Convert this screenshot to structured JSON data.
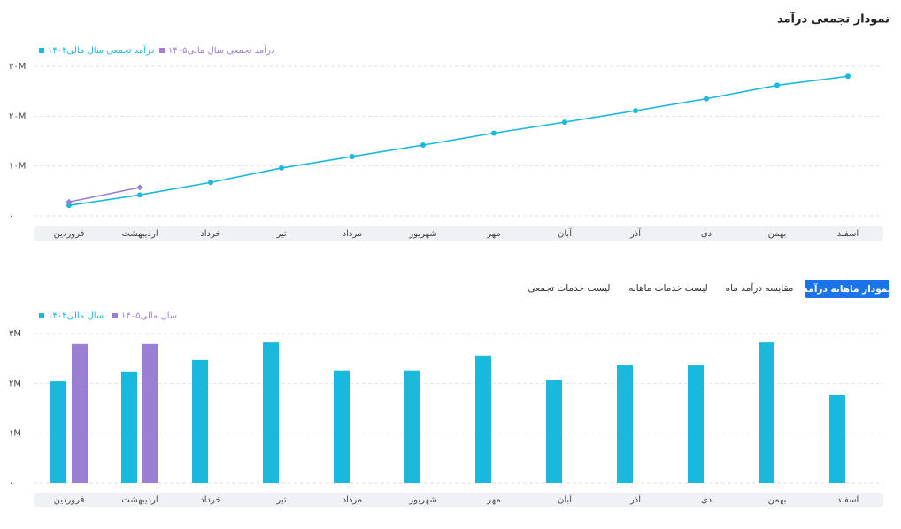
{
  "chart_data": [
    {
      "type": "line",
      "title": "نمودار تجمعی درآمد",
      "categories": [
        "فروردین",
        "اردیبهشت",
        "خرداد",
        "تیر",
        "مرداد",
        "شهریور",
        "مهر",
        "آبان",
        "آذر",
        "دی",
        "بهمن",
        "اسفند"
      ],
      "series": [
        {
          "name": "درآمد تجمعی سال مالی۱۴۰۴",
          "color": "#1ab8dc",
          "values": [
            2.1,
            4.2,
            6.7,
            9.6,
            11.9,
            14.2,
            16.6,
            18.8,
            21.1,
            23.5,
            26.2,
            28.0
          ]
        },
        {
          "name": "درآمد تجمعی سال مالی۱۴۰۵",
          "color": "#9b7fd4",
          "values": [
            2.8,
            5.7,
            null,
            null,
            null,
            null,
            null,
            null,
            null,
            null,
            null,
            null
          ]
        }
      ],
      "ylim": [
        0,
        30
      ],
      "yticks": [
        {
          "value": 0,
          "label": "۰"
        },
        {
          "value": 10,
          "label": "۱۰M"
        },
        {
          "value": 20,
          "label": "۲۰M"
        },
        {
          "value": 30,
          "label": "۳۰M"
        }
      ],
      "grid": true
    },
    {
      "type": "bar",
      "categories": [
        "فروردین",
        "اردیبهشت",
        "خرداد",
        "تیر",
        "مرداد",
        "شهریور",
        "مهر",
        "آبان",
        "آذر",
        "دی",
        "بهمن",
        "اسفند"
      ],
      "series": [
        {
          "name": "سال مالی۱۴۰۴",
          "color": "#1ab8dc",
          "values": [
            2.04,
            2.24,
            2.47,
            2.82,
            2.26,
            2.26,
            2.56,
            2.06,
            2.36,
            2.36,
            2.82,
            1.76
          ]
        },
        {
          "name": "سال مالی۱۴۰۵",
          "color": "#9b7fd4",
          "values": [
            2.79,
            2.79,
            null,
            null,
            null,
            null,
            null,
            null,
            null,
            null,
            null,
            null
          ]
        }
      ],
      "ylim": [
        0,
        3
      ],
      "yticks": [
        {
          "value": 0,
          "label": "۰"
        },
        {
          "value": 1,
          "label": "۱M"
        },
        {
          "value": 2,
          "label": "۲M"
        },
        {
          "value": 3,
          "label": "۳M"
        }
      ],
      "grid": true
    }
  ],
  "tabs": [
    "نمودار ماهانه درآمد",
    "مقایسه درآمد ماه",
    "لیست خدمات ماهانه",
    "لیست خدمات تجمعی"
  ]
}
